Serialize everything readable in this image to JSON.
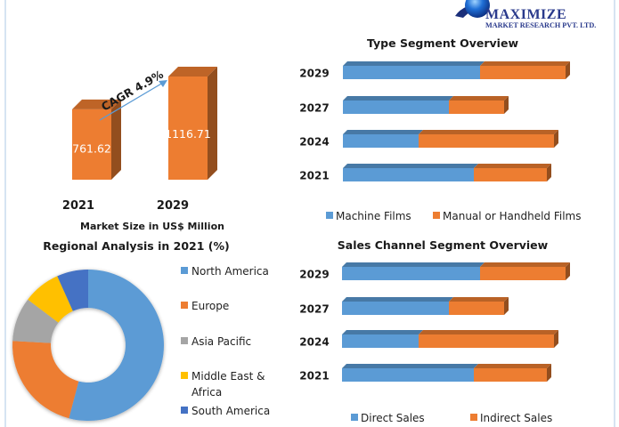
{
  "logo": {
    "name": "MAXIMIZE",
    "subtitle": "MARKET RESEARCH PVT. LTD."
  },
  "colors": {
    "blue": "#5b9bd5",
    "orange": "#ed7d31",
    "gray": "#a5a5a5",
    "yellow": "#ffc000",
    "darkblue": "#4472c4"
  },
  "chart_data": [
    {
      "type": "bar",
      "id": "market-size",
      "title": "",
      "xlabel": "Market Size in US$ Million",
      "categories": [
        "2021",
        "2029"
      ],
      "values": [
        761.62,
        1116.71
      ],
      "value_labels": [
        "761.62",
        "1116.71"
      ],
      "annotation": "CAGR 4.9%",
      "ylim": [
        0,
        1200
      ]
    },
    {
      "type": "bar",
      "id": "type-segment",
      "orientation": "horizontal-stacked",
      "title": "Type Segment Overview",
      "categories": [
        "2029",
        "2027",
        "2024",
        "2021"
      ],
      "series": [
        {
          "name": "Machine Films",
          "values": [
            61.6,
            47.6,
            34.0,
            58.8
          ]
        },
        {
          "name": "Manual or Handheld Films",
          "values": [
            38.4,
            24.8,
            60.8,
            32.8
          ]
        }
      ],
      "xlim": [
        0,
        100
      ],
      "legend": "bottom"
    },
    {
      "type": "pie",
      "id": "regional",
      "title": "Regional Analysis in 2021 (%)",
      "style": "donut",
      "labels": [
        "North America",
        "Europe",
        "Asia Pacific",
        "Middle East & Africa",
        "South America"
      ],
      "legend_lines": [
        [
          "North America"
        ],
        [
          "Europe"
        ],
        [
          "Asia Pacific"
        ],
        [
          "Middle East &",
          "Africa"
        ],
        [
          "South America"
        ]
      ],
      "values": [
        54.1,
        21.8,
        9.4,
        8.0,
        6.7
      ],
      "legend": "right"
    },
    {
      "type": "bar",
      "id": "sales-channel",
      "orientation": "horizontal-stacked",
      "title": "Sales Channel Segment Overview",
      "categories": [
        "2029",
        "2027",
        "2024",
        "2021"
      ],
      "series": [
        {
          "name": "Direct Sales",
          "values": [
            62.0,
            48.0,
            34.4,
            59.2
          ]
        },
        {
          "name": "Indirect Sales",
          "values": [
            38.4,
            24.8,
            60.8,
            32.8
          ]
        }
      ],
      "xlim": [
        0,
        100
      ],
      "legend": "bottom"
    }
  ]
}
